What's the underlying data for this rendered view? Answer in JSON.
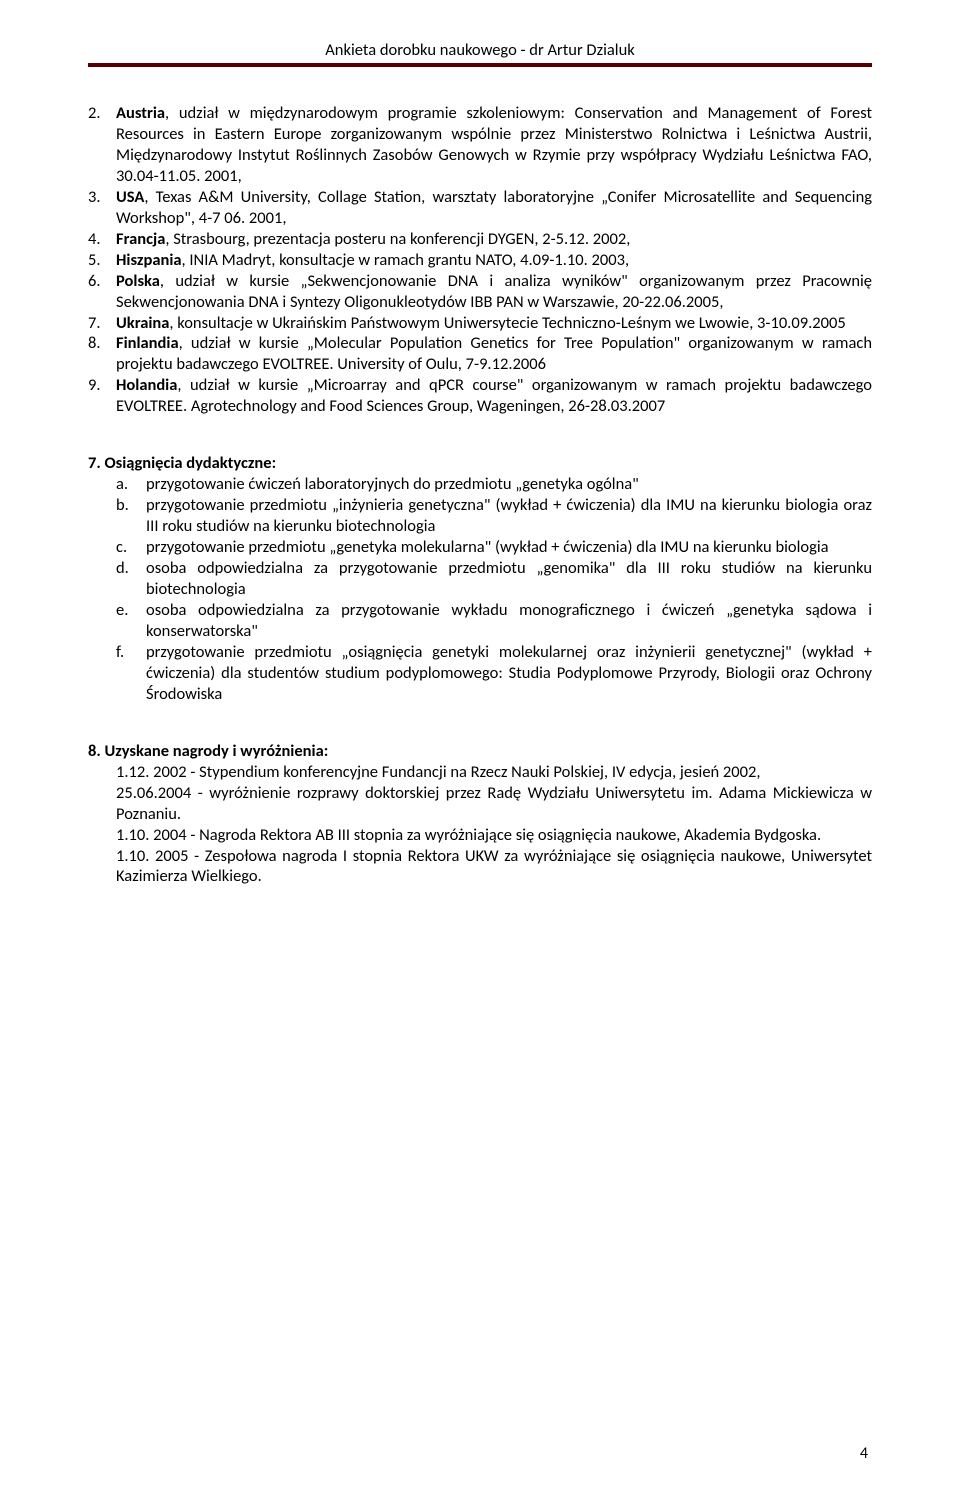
{
  "header": {
    "title": "Ankieta dorobku naukowego - dr Artur Dzialuk"
  },
  "colors": {
    "rule": "#5a0000",
    "text": "#000000",
    "background": "#ffffff"
  },
  "numbered": [
    {
      "n": "2",
      "text": "Austria, udział w międzynarodowym programie szkoleniowym: Conservation and Management of Forest Resources in Eastern Europe zorganizowanym wspólnie przez Ministerstwo Rolnictwa i Leśnictwa Austrii, Międzynarodowy Instytut Roślinnych Zasobów Genowych w Rzymie przy współpracy Wydziału Leśnictwa FAO, 30.04-11.05. 2001,",
      "lead": "Austria"
    },
    {
      "n": "3",
      "text": "USA, Texas A&M University, Collage Station, warsztaty laboratoryjne „Conifer Microsatellite and Sequencing Workshop\", 4-7 06. 2001,",
      "lead": "USA"
    },
    {
      "n": "4",
      "text": "Francja, Strasbourg, prezentacja posteru na konferencji DYGEN, 2-5.12. 2002,",
      "lead": "Francja"
    },
    {
      "n": "5",
      "text": "Hiszpania, INIA Madryt, konsultacje w ramach grantu NATO, 4.09-1.10. 2003,",
      "lead": "Hiszpania"
    },
    {
      "n": "6",
      "text": "Polska, udział w kursie „Sekwencjonowanie DNA i analiza wyników\" organizowanym przez Pracownię Sekwencjonowania DNA i Syntezy Oligonukleotydów IBB PAN w Warszawie, 20-22.06.2005,",
      "lead": "Polska"
    },
    {
      "n": "7",
      "text": "Ukraina, konsultacje w Ukraińskim Państwowym Uniwersytecie Techniczno-Leśnym we Lwowie, 3-10.09.2005",
      "lead": "Ukraina"
    },
    {
      "n": "8",
      "text": "Finlandia, udział w kursie „Molecular Population Genetics for Tree Population\" organizowanym w ramach projektu badawczego EVOLTREE. University of Oulu, 7-9.12.2006",
      "lead": "Finlandia"
    },
    {
      "n": "9",
      "text": "Holandia, udział w kursie „Microarray and qPCR course\" organizowanym w ramach projektu badawczego EVOLTREE. Agrotechnology and Food Sciences Group, Wageningen, 26-28.03.2007",
      "lead": "Holandia"
    }
  ],
  "section7": {
    "heading": "7. Osiągnięcia dydaktyczne:",
    "items": [
      {
        "n": "a",
        "text": "przygotowanie ćwiczeń laboratoryjnych do przedmiotu „genetyka ogólna\""
      },
      {
        "n": "b",
        "text": "przygotowanie przedmiotu „inżynieria genetyczna\" (wykład + ćwiczenia) dla IMU na kierunku biologia oraz III roku studiów na kierunku biotechnologia"
      },
      {
        "n": "c",
        "text": "przygotowanie przedmiotu „genetyka molekularna\" (wykład + ćwiczenia) dla IMU na kierunku biologia"
      },
      {
        "n": "d",
        "text": "osoba odpowiedzialna za przygotowanie przedmiotu „genomika\" dla III roku studiów na kierunku biotechnologia"
      },
      {
        "n": "e",
        "text": "osoba odpowiedzialna za przygotowanie wykładu monograficznego i ćwiczeń „genetyka sądowa i konserwatorska\""
      },
      {
        "n": "f",
        "text": "przygotowanie przedmiotu „osiągnięcia genetyki molekularnej oraz inżynierii genetycznej\" (wykład + ćwiczenia) dla studentów studium podyplomowego: Studia Podyplomowe Przyrody, Biologii oraz Ochrony Środowiska"
      }
    ]
  },
  "section8": {
    "heading": "8. Uzyskane nagrody i wyróżnienia:",
    "lines": [
      "1.12. 2002 - Stypendium konferencyjne Fundancji na Rzecz Nauki Polskiej, IV edycja, jesień 2002,",
      "25.06.2004 - wyróżnienie rozprawy doktorskiej przez Radę Wydziału Uniwersytetu im. Adama Mickiewicza w Poznaniu.",
      "1.10. 2004 - Nagroda Rektora AB III stopnia za wyróżniające się osiągnięcia naukowe, Akademia Bydgoska.",
      "1.10. 2005 - Zespołowa nagroda I stopnia Rektora UKW za wyróżniające się osiągnięcia naukowe, Uniwersytet Kazimierza Wielkiego."
    ]
  },
  "pagenum": "4"
}
